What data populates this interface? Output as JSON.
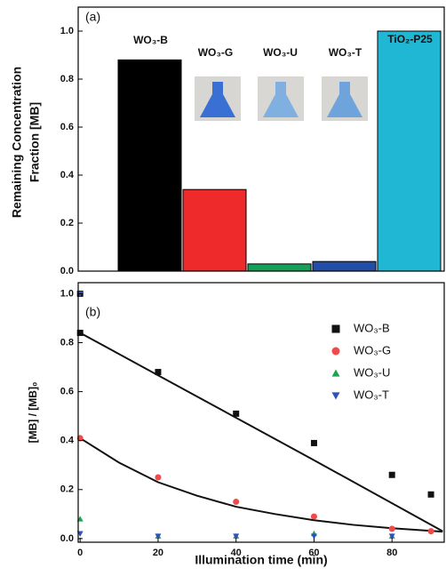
{
  "chart_data": [
    {
      "type": "bar",
      "panel_label": "(a)",
      "ylabel": [
        "Remaining Concentration",
        "Fraction [MB]"
      ],
      "categories": [
        "WO₃-B",
        "WO₃-G",
        "WO₃-U",
        "WO₃-T",
        "TiO₂-P25"
      ],
      "values": [
        0.88,
        0.34,
        0.03,
        0.04,
        1.0
      ],
      "colors": [
        "#000000",
        "#ee2a2a",
        "#17a05a",
        "#234ea8",
        "#1fb7d4"
      ],
      "ylim": [
        0,
        1.1
      ],
      "yticks": [
        {
          "value": 0,
          "label": "0.0"
        },
        0.2,
        0.4,
        0.6,
        0.8,
        {
          "value": 1,
          "label": "1.0"
        }
      ]
    },
    {
      "type": "scatter",
      "panel_label": "(b)",
      "xlabel": "Illumination time (min)",
      "ylabel": "[MB] / [MB]₀",
      "series": [
        {
          "name": "WO₃-B",
          "color": "#111111",
          "marker": "square",
          "x": [
            0,
            0,
            20,
            40,
            60,
            80,
            90
          ],
          "values": [
            1.0,
            0.84,
            0.68,
            0.51,
            0.39,
            0.26,
            0.18
          ]
        },
        {
          "name": "WO₃-G",
          "color": "#f04a4a",
          "marker": "circle",
          "x": [
            0,
            20,
            40,
            60,
            80,
            90
          ],
          "values": [
            0.41,
            0.25,
            0.15,
            0.09,
            0.04,
            0.03
          ]
        },
        {
          "name": "WO₃-U",
          "color": "#1fa34a",
          "marker": "triangle-up",
          "x": [
            0,
            20,
            40,
            60,
            80
          ],
          "values": [
            0.08,
            0.01,
            0.01,
            0.02,
            0.01
          ]
        },
        {
          "name": "WO₃-T",
          "color": "#3050c0",
          "marker": "triangle-down",
          "x": [
            0,
            0,
            20,
            40,
            60,
            80
          ],
          "values": [
            1.0,
            0.02,
            0.01,
            0.01,
            0.01,
            0.01
          ]
        }
      ],
      "fits": [
        {
          "color": "#111111",
          "x": [
            0,
            30,
            60,
            93
          ],
          "values": [
            0.84,
            0.58,
            0.32,
            0.03
          ]
        },
        {
          "color": "#111111",
          "x": [
            0,
            10,
            20,
            30,
            40,
            50,
            60,
            70,
            80,
            93
          ],
          "values": [
            0.41,
            0.31,
            0.23,
            0.175,
            0.13,
            0.1,
            0.075,
            0.056,
            0.042,
            0.028
          ]
        }
      ],
      "xlim": [
        -0.5,
        93.4
      ],
      "ylim": [
        -0.015,
        1.045
      ],
      "xticks": [
        0,
        20,
        40,
        60,
        80
      ],
      "yticks": [
        {
          "value": 0,
          "label": "0.0"
        },
        0.2,
        0.4,
        0.6,
        0.8,
        {
          "value": 1,
          "label": "1.0"
        }
      ]
    }
  ]
}
